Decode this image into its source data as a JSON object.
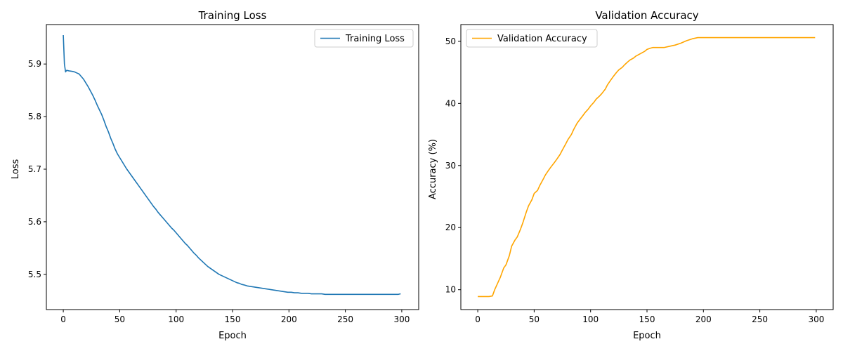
{
  "chart_data": [
    {
      "type": "line",
      "title": "Training Loss",
      "xlabel": "Epoch",
      "ylabel": "Loss",
      "xlim": [
        -15,
        315
      ],
      "ylim": [
        5.433,
        5.975
      ],
      "xticks": [
        0,
        50,
        100,
        150,
        200,
        250,
        300
      ],
      "yticks": [
        5.5,
        5.6,
        5.7,
        5.8,
        5.9
      ],
      "grid": false,
      "legend": "upper-right",
      "series": [
        {
          "name": "Training Loss",
          "color": "#1f77b4",
          "x": [
            0,
            1,
            2,
            3,
            5,
            8,
            10,
            12,
            14,
            16,
            18,
            20,
            22,
            24,
            26,
            28,
            30,
            32,
            34,
            36,
            38,
            40,
            42,
            44,
            46,
            48,
            50,
            52,
            54,
            56,
            58,
            60,
            62,
            64,
            66,
            68,
            70,
            72,
            74,
            76,
            78,
            80,
            82,
            84,
            86,
            88,
            90,
            92,
            94,
            96,
            98,
            100,
            102,
            104,
            106,
            108,
            110,
            112,
            114,
            116,
            118,
            120,
            122,
            124,
            126,
            128,
            130,
            132,
            134,
            136,
            138,
            140,
            142,
            144,
            146,
            148,
            150,
            152,
            154,
            156,
            158,
            160,
            163,
            166,
            169,
            172,
            175,
            178,
            181,
            184,
            187,
            190,
            193,
            196,
            199,
            202,
            205,
            208,
            211,
            214,
            217,
            220,
            223,
            226,
            229,
            232,
            235,
            238,
            241,
            244,
            247,
            250,
            253,
            256,
            259,
            262,
            265,
            268,
            271,
            274,
            277,
            280,
            283,
            286,
            289,
            292,
            295,
            297,
            299
          ],
          "y": [
            5.955,
            5.9,
            5.885,
            5.888,
            5.887,
            5.886,
            5.885,
            5.883,
            5.881,
            5.876,
            5.871,
            5.864,
            5.857,
            5.849,
            5.841,
            5.832,
            5.822,
            5.813,
            5.804,
            5.793,
            5.781,
            5.771,
            5.759,
            5.749,
            5.738,
            5.729,
            5.722,
            5.715,
            5.708,
            5.701,
            5.695,
            5.689,
            5.683,
            5.677,
            5.671,
            5.665,
            5.659,
            5.653,
            5.647,
            5.641,
            5.635,
            5.629,
            5.624,
            5.618,
            5.613,
            5.608,
            5.603,
            5.598,
            5.593,
            5.588,
            5.584,
            5.579,
            5.574,
            5.569,
            5.564,
            5.559,
            5.555,
            5.55,
            5.545,
            5.54,
            5.536,
            5.531,
            5.527,
            5.523,
            5.519,
            5.515,
            5.512,
            5.509,
            5.506,
            5.503,
            5.5,
            5.498,
            5.496,
            5.494,
            5.492,
            5.49,
            5.488,
            5.486,
            5.484,
            5.483,
            5.481,
            5.48,
            5.478,
            5.477,
            5.476,
            5.475,
            5.474,
            5.473,
            5.472,
            5.471,
            5.47,
            5.469,
            5.468,
            5.467,
            5.466,
            5.466,
            5.465,
            5.465,
            5.464,
            5.464,
            5.464,
            5.463,
            5.463,
            5.463,
            5.463,
            5.462,
            5.462,
            5.462,
            5.462,
            5.462,
            5.462,
            5.462,
            5.462,
            5.462,
            5.462,
            5.462,
            5.462,
            5.462,
            5.462,
            5.462,
            5.462,
            5.462,
            5.462,
            5.462,
            5.462,
            5.462,
            5.462,
            5.462,
            5.463
          ]
        }
      ]
    },
    {
      "type": "line",
      "title": "Validation Accuracy",
      "xlabel": "Epoch",
      "ylabel": "Accuracy (%)",
      "xlim": [
        -15,
        315
      ],
      "ylim": [
        6.8,
        52.7
      ],
      "xticks": [
        0,
        50,
        100,
        150,
        200,
        250,
        300
      ],
      "yticks": [
        10,
        20,
        30,
        40,
        50
      ],
      "grid": false,
      "legend": "upper-left",
      "series": [
        {
          "name": "Validation Accuracy",
          "color": "#ffa500",
          "x": [
            0,
            5,
            10,
            13,
            15,
            18,
            20,
            23,
            25,
            28,
            30,
            33,
            35,
            38,
            40,
            43,
            45,
            48,
            50,
            53,
            55,
            58,
            60,
            63,
            65,
            68,
            70,
            73,
            75,
            78,
            80,
            83,
            85,
            88,
            90,
            93,
            95,
            98,
            100,
            103,
            105,
            108,
            110,
            113,
            115,
            118,
            120,
            123,
            125,
            128,
            130,
            133,
            135,
            138,
            140,
            143,
            145,
            148,
            150,
            153,
            155,
            158,
            160,
            165,
            170,
            175,
            180,
            185,
            190,
            195,
            200,
            210,
            220,
            230,
            240,
            250,
            260,
            270,
            280,
            290,
            299
          ],
          "y": [
            8.9,
            8.9,
            8.9,
            9.0,
            10.0,
            11.2,
            12.0,
            13.5,
            14.0,
            15.5,
            17.0,
            18.0,
            18.5,
            19.8,
            20.8,
            22.5,
            23.5,
            24.5,
            25.5,
            26.0,
            26.8,
            27.8,
            28.5,
            29.3,
            29.8,
            30.5,
            31.0,
            31.8,
            32.5,
            33.5,
            34.2,
            35.0,
            35.8,
            36.8,
            37.3,
            38.0,
            38.5,
            39.1,
            39.6,
            40.2,
            40.7,
            41.2,
            41.6,
            42.3,
            43.0,
            43.8,
            44.3,
            45.0,
            45.4,
            45.8,
            46.2,
            46.7,
            47.0,
            47.3,
            47.6,
            47.9,
            48.1,
            48.4,
            48.7,
            48.9,
            49.0,
            49.0,
            49.0,
            49.0,
            49.2,
            49.4,
            49.7,
            50.1,
            50.4,
            50.6,
            50.6,
            50.6,
            50.6,
            50.6,
            50.6,
            50.6,
            50.6,
            50.6,
            50.6,
            50.6,
            50.6
          ]
        }
      ]
    }
  ]
}
